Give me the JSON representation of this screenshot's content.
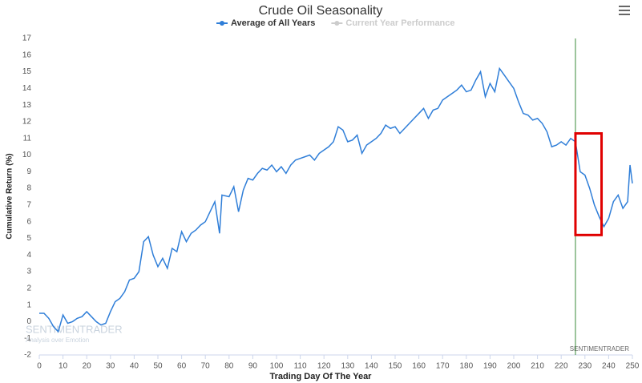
{
  "chart_data": {
    "type": "line",
    "title": "Crude Oil Seasonality",
    "x_label": "Trading Day Of The Year",
    "y_label": "Cumulative Return (%)",
    "series": [
      {
        "name": "Average of All Years",
        "color": "#2f7ed8",
        "x": [
          0,
          2,
          4,
          6,
          8,
          10,
          12,
          14,
          16,
          18,
          20,
          22,
          24,
          26,
          28,
          30,
          32,
          34,
          36,
          38,
          40,
          42,
          44,
          46,
          48,
          50,
          52,
          54,
          56,
          58,
          60,
          62,
          64,
          66,
          68,
          70,
          72,
          74,
          76,
          77,
          80,
          82,
          84,
          86,
          88,
          90,
          92,
          94,
          96,
          98,
          100,
          102,
          104,
          106,
          108,
          110,
          112,
          114,
          116,
          118,
          120,
          122,
          124,
          126,
          128,
          130,
          132,
          134,
          136,
          138,
          140,
          142,
          144,
          146,
          148,
          150,
          152,
          154,
          156,
          158,
          160,
          162,
          164,
          166,
          168,
          170,
          172,
          174,
          176,
          178,
          180,
          182,
          184,
          186,
          188,
          190,
          192,
          194,
          196,
          198,
          200,
          202,
          204,
          206,
          208,
          210,
          212,
          214,
          216,
          218,
          220,
          222,
          224,
          226,
          228,
          230,
          232,
          234,
          236,
          238,
          240,
          242,
          244,
          246,
          248,
          249,
          250
        ],
        "values": [
          0.5,
          0.5,
          0.2,
          -0.3,
          -0.6,
          0.4,
          -0.1,
          0.0,
          0.2,
          0.3,
          0.6,
          0.3,
          0,
          -0.2,
          -0.1,
          0.6,
          1.2,
          1.4,
          1.8,
          2.5,
          2.6,
          3.0,
          4.8,
          5.1,
          4.0,
          3.3,
          3.8,
          3.2,
          4.4,
          4.2,
          5.4,
          4.8,
          5.3,
          5.5,
          5.8,
          6.0,
          6.6,
          7.2,
          5.3,
          7.6,
          7.5,
          8.1,
          6.6,
          7.9,
          8.6,
          8.5,
          8.9,
          9.2,
          9.1,
          9.4,
          9.0,
          9.3,
          8.9,
          9.4,
          9.7,
          9.8,
          9.9,
          10.0,
          9.7,
          10.1,
          10.3,
          10.5,
          10.8,
          11.7,
          11.5,
          10.8,
          10.9,
          11.2,
          10.1,
          10.6,
          10.8,
          11.0,
          11.3,
          11.8,
          11.6,
          11.7,
          11.3,
          11.6,
          11.9,
          12.2,
          12.5,
          12.8,
          12.2,
          12.7,
          12.8,
          13.3,
          13.5,
          13.7,
          13.9,
          14.2,
          13.8,
          13.9,
          14.5,
          15.0,
          13.5,
          14.3,
          13.8,
          15.2,
          14.8,
          14.4,
          14.0,
          13.2,
          12.5,
          12.4,
          12.1,
          12.2,
          11.9,
          11.4,
          10.5,
          10.6,
          10.8,
          10.6,
          11.0,
          10.8,
          9.0,
          8.8,
          8.0,
          7.0,
          6.3,
          5.7,
          6.2,
          7.2,
          7.6,
          6.8,
          7.2,
          9.4,
          8.3
        ]
      },
      {
        "name": "Current Year Performance",
        "color": "#cccccc",
        "x": [],
        "values": []
      }
    ],
    "xlim": [
      0,
      250
    ],
    "xticks": [
      0,
      10,
      20,
      30,
      40,
      50,
      60,
      70,
      80,
      90,
      100,
      110,
      120,
      130,
      140,
      150,
      160,
      170,
      180,
      190,
      200,
      210,
      220,
      230,
      240,
      250
    ],
    "ylim": [
      -2,
      17
    ],
    "yticks": [
      -2,
      -1,
      0,
      1,
      2,
      3,
      4,
      5,
      6,
      7,
      8,
      9,
      10,
      11,
      12,
      13,
      14,
      15,
      16,
      17
    ],
    "plot_lines": [
      {
        "value": 226,
        "color": "#3a8a3a"
      }
    ],
    "highlight": {
      "x": [
        226,
        237
      ],
      "y": [
        5.2,
        11.3
      ],
      "color": "#e00000"
    },
    "watermark": {
      "name": "SENTIMENTRADER",
      "tagline": "Analysis over Emotion"
    },
    "credit": "SENTIMENTRADER"
  }
}
